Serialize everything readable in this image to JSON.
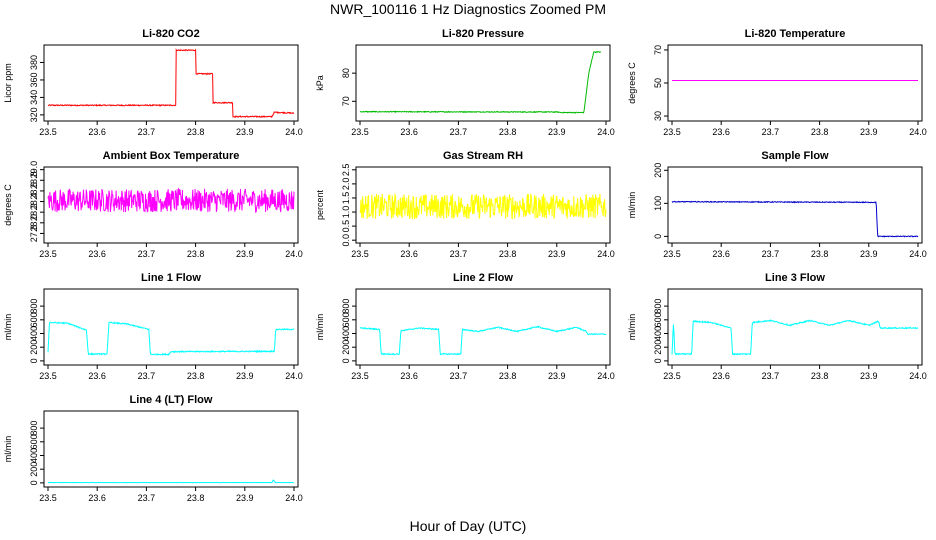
{
  "figure": {
    "title": "NWR_100116  1 Hz Diagnostics Zoomed PM",
    "xlabel": "Hour of Day (UTC)"
  },
  "chart_data": [
    {
      "type": "line",
      "title": "Li-820 CO2",
      "ylabel": "Licor ppm",
      "color": "#ff0000",
      "xlim": [
        23.5,
        24.0
      ],
      "ylim": [
        313,
        400
      ],
      "xticks": [
        "23.5",
        "23.6",
        "23.7",
        "23.8",
        "23.9",
        "24.0"
      ],
      "yticks": [
        320,
        340,
        360,
        380
      ],
      "noise": 0.6,
      "series": [
        {
          "x": [
            23.5,
            23.76,
            23.76,
            23.8,
            23.8,
            23.835,
            23.835,
            23.875,
            23.875,
            23.955,
            23.955,
            23.96,
            23.96,
            24.0
          ],
          "y": [
            331,
            331,
            394,
            394,
            367,
            367,
            334,
            334,
            318,
            318,
            318,
            323,
            323,
            322
          ]
        }
      ]
    },
    {
      "type": "line",
      "title": "Li-820 Pressure",
      "ylabel": "kPa",
      "color": "#00bb00",
      "xlim": [
        23.5,
        24.0
      ],
      "ylim": [
        63,
        90
      ],
      "xticks": [
        "23.5",
        "23.6",
        "23.7",
        "23.8",
        "23.9",
        "24.0"
      ],
      "yticks": [
        70,
        80
      ],
      "noise": 0.15,
      "series": [
        {
          "x": [
            23.5,
            23.9,
            23.91,
            23.955,
            23.965,
            23.975,
            23.99
          ],
          "y": [
            66.3,
            66.2,
            66.0,
            66.0,
            80.0,
            87.5,
            87.5
          ]
        }
      ]
    },
    {
      "type": "line",
      "title": "Li-820 Temperature",
      "ylabel": "degrees C",
      "color": "#ff00ff",
      "xlim": [
        23.5,
        24.0
      ],
      "ylim": [
        27,
        73
      ],
      "xticks": [
        "23.5",
        "23.6",
        "23.7",
        "23.8",
        "23.9",
        "24.0"
      ],
      "yticks": [
        30,
        50,
        70
      ],
      "noise": 0,
      "series": [
        {
          "x": [
            23.5,
            24.0
          ],
          "y": [
            51.5,
            51.5
          ]
        }
      ]
    },
    {
      "type": "line",
      "title": "Ambient Box Temperature",
      "ylabel": "degrees C",
      "color": "#ff00ff",
      "xlim": [
        23.5,
        24.0
      ],
      "ylim": [
        27.62,
        29.05
      ],
      "xticks": [
        "23.5",
        "23.6",
        "23.7",
        "23.8",
        "23.9",
        "24.0"
      ],
      "yticks": [
        27.8,
        28.0,
        28.2,
        28.4,
        28.6,
        28.8,
        29.0
      ],
      "noise": 0.22,
      "series": [
        {
          "x": [
            23.5,
            24.0
          ],
          "y": [
            28.42,
            28.42
          ]
        }
      ]
    },
    {
      "type": "line",
      "title": "Gas Stream RH",
      "ylabel": "percent",
      "color": "#ffff00",
      "xlim": [
        23.5,
        24.0
      ],
      "ylim": [
        -0.1,
        2.6
      ],
      "xticks": [
        "23.5",
        "23.6",
        "23.7",
        "23.8",
        "23.9",
        "24.0"
      ],
      "yticks": [
        0.0,
        0.5,
        1.0,
        1.5,
        2.0,
        2.5
      ],
      "noise": 0.45,
      "series": [
        {
          "x": [
            23.5,
            24.0
          ],
          "y": [
            1.2,
            1.2
          ]
        }
      ]
    },
    {
      "type": "line",
      "title": "Sample Flow",
      "ylabel": "ml/min",
      "color": "#0000cc",
      "xlim": [
        23.5,
        24.0
      ],
      "ylim": [
        -20,
        210
      ],
      "xticks": [
        "23.5",
        "23.6",
        "23.7",
        "23.8",
        "23.9",
        "24.0"
      ],
      "yticks": [
        0,
        100,
        200
      ],
      "noise": 1.2,
      "series": [
        {
          "x": [
            23.5,
            23.915,
            23.918,
            24.0
          ],
          "y": [
            105,
            103,
            0,
            0
          ]
        }
      ]
    },
    {
      "type": "line",
      "title": "Line 1 Flow",
      "ylabel": "ml/min",
      "color": "#00ffff",
      "xlim": [
        23.5,
        24.0
      ],
      "ylim": [
        -60,
        1050
      ],
      "xticks": [
        "23.5",
        "23.6",
        "23.7",
        "23.8",
        "23.9",
        "24.0"
      ],
      "yticks": [
        0,
        200,
        400,
        600,
        800
      ],
      "noise": 8,
      "series": [
        {
          "x": [
            23.5,
            23.503,
            23.506,
            23.54,
            23.578,
            23.582,
            23.62,
            23.624,
            23.66,
            23.705,
            23.708,
            23.745,
            23.75,
            23.96,
            23.963,
            24.0
          ],
          "y": [
            130,
            560,
            560,
            550,
            450,
            100,
            100,
            560,
            540,
            460,
            95,
            95,
            135,
            140,
            460,
            460
          ]
        }
      ]
    },
    {
      "type": "line",
      "title": "Line 2 Flow",
      "ylabel": "ml/min",
      "color": "#00ffff",
      "xlim": [
        23.5,
        24.0
      ],
      "ylim": [
        -60,
        1050
      ],
      "xticks": [
        "23.5",
        "23.6",
        "23.7",
        "23.8",
        "23.9",
        "24.0"
      ],
      "yticks": [
        0,
        200,
        400,
        600,
        800
      ],
      "noise": 8,
      "series": [
        {
          "x": [
            23.5,
            23.54,
            23.543,
            23.58,
            23.583,
            23.62,
            23.66,
            23.663,
            23.705,
            23.708,
            23.74,
            23.78,
            23.82,
            23.86,
            23.9,
            23.94,
            23.96,
            23.963,
            24.0
          ],
          "y": [
            480,
            460,
            100,
            100,
            440,
            480,
            460,
            100,
            100,
            460,
            430,
            490,
            430,
            500,
            430,
            490,
            430,
            390,
            390
          ]
        }
      ]
    },
    {
      "type": "line",
      "title": "Line 3 Flow",
      "ylabel": "ml/min",
      "color": "#00ffff",
      "xlim": [
        23.5,
        24.0
      ],
      "ylim": [
        -60,
        1050
      ],
      "xticks": [
        "23.5",
        "23.6",
        "23.7",
        "23.8",
        "23.9",
        "24.0"
      ],
      "yticks": [
        0,
        200,
        400,
        600,
        800
      ],
      "noise": 8,
      "series": [
        {
          "x": [
            23.5,
            23.503,
            23.506,
            23.54,
            23.543,
            23.58,
            23.62,
            23.623,
            23.66,
            23.663,
            23.7,
            23.74,
            23.78,
            23.82,
            23.86,
            23.9,
            23.92,
            23.923,
            24.0
          ],
          "y": [
            100,
            550,
            100,
            100,
            580,
            560,
            480,
            100,
            100,
            560,
            590,
            520,
            590,
            520,
            590,
            520,
            580,
            480,
            480
          ]
        }
      ]
    },
    {
      "type": "line",
      "title": "Line 4 (LT) Flow",
      "ylabel": "ml/min",
      "color": "#00ffff",
      "xlim": [
        23.5,
        24.0
      ],
      "ylim": [
        -60,
        1050
      ],
      "xticks": [
        "23.5",
        "23.6",
        "23.7",
        "23.8",
        "23.9",
        "24.0"
      ],
      "yticks": [
        0,
        200,
        400,
        600,
        800
      ],
      "noise": 2,
      "series": [
        {
          "x": [
            23.5,
            23.955,
            23.958,
            23.962,
            23.966,
            24.0
          ],
          "y": [
            5,
            5,
            45,
            5,
            5,
            5
          ]
        }
      ]
    }
  ]
}
